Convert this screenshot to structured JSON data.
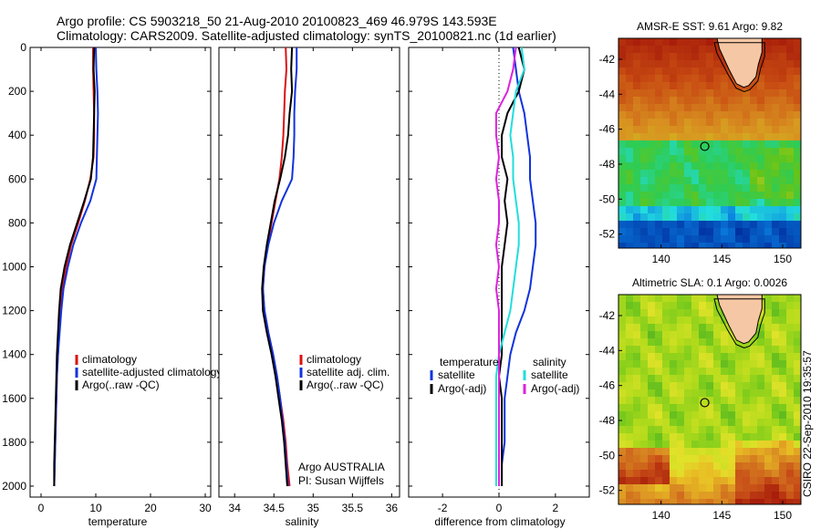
{
  "title_line1": "Argo profile: CS 5903218_50 21-Aug-2010 20100823_469 46.979S 143.593E",
  "title_line2": "Climatology: CARS2009. Satellite-adjusted climatology: synTS_20100821.nc (1d earlier)",
  "stamp": "CSIRO 22-Sep-2010 19:35:57",
  "colors": {
    "climatology": "#dd1111",
    "satellite": "#1133dd",
    "argo": "#000000",
    "argo_sal": "#dd22dd",
    "sat_sal": "#22dddd"
  },
  "chart_data": [
    {
      "type": "line",
      "xlabel": "temperature",
      "xlim": [
        -2,
        31
      ],
      "xticks": [
        0,
        10,
        20,
        30
      ],
      "ylim": [
        2050,
        0
      ],
      "yticks": [
        0,
        200,
        400,
        600,
        800,
        1000,
        1200,
        1400,
        1600,
        1800,
        2000
      ],
      "legend": {
        "placement": "bottom-right",
        "entries": [
          "climatology",
          "satellite-adjusted climatology",
          "Argo(..raw -QC)"
        ]
      },
      "series": [
        {
          "name": "climatology",
          "color": "#dd1111",
          "points": [
            [
              9.5,
              0
            ],
            [
              9.5,
              100
            ],
            [
              9.6,
              200
            ],
            [
              9.7,
              300
            ],
            [
              9.7,
              400
            ],
            [
              9.6,
              500
            ],
            [
              9.0,
              600
            ],
            [
              8.0,
              700
            ],
            [
              6.8,
              800
            ],
            [
              5.5,
              900
            ],
            [
              4.6,
              1000
            ],
            [
              3.9,
              1100
            ],
            [
              3.6,
              1200
            ],
            [
              3.3,
              1300
            ],
            [
              3.1,
              1400
            ],
            [
              2.9,
              1500
            ],
            [
              2.8,
              1600
            ],
            [
              2.7,
              1700
            ],
            [
              2.6,
              1800
            ],
            [
              2.5,
              1900
            ],
            [
              2.4,
              2000
            ]
          ]
        },
        {
          "name": "satellite-adjusted climatology",
          "color": "#1133dd",
          "points": [
            [
              10.0,
              0
            ],
            [
              10.1,
              100
            ],
            [
              10.3,
              200
            ],
            [
              10.4,
              300
            ],
            [
              10.3,
              400
            ],
            [
              10.2,
              500
            ],
            [
              10.1,
              600
            ],
            [
              9.0,
              700
            ],
            [
              7.3,
              800
            ],
            [
              5.9,
              900
            ],
            [
              4.9,
              1000
            ],
            [
              4.1,
              1100
            ],
            [
              3.7,
              1200
            ],
            [
              3.4,
              1300
            ],
            [
              3.1,
              1400
            ],
            [
              2.9,
              1500
            ],
            [
              2.8,
              1600
            ],
            [
              2.7,
              1700
            ],
            [
              2.6,
              1800
            ],
            [
              2.5,
              1900
            ],
            [
              2.4,
              2000
            ]
          ]
        },
        {
          "name": "Argo(..raw -QC)",
          "color": "#000000",
          "points": [
            [
              9.7,
              0
            ],
            [
              9.6,
              100
            ],
            [
              9.8,
              200
            ],
            [
              9.7,
              300
            ],
            [
              9.6,
              400
            ],
            [
              9.5,
              500
            ],
            [
              9.1,
              600
            ],
            [
              7.9,
              700
            ],
            [
              6.6,
              800
            ],
            [
              5.3,
              900
            ],
            [
              4.3,
              1000
            ],
            [
              3.6,
              1100
            ],
            [
              3.3,
              1200
            ],
            [
              3.1,
              1300
            ],
            [
              2.9,
              1400
            ],
            [
              2.8,
              1500
            ],
            [
              2.7,
              1600
            ],
            [
              2.6,
              1700
            ],
            [
              2.5,
              1800
            ],
            [
              2.4,
              1900
            ],
            [
              2.4,
              2000
            ]
          ]
        }
      ]
    },
    {
      "type": "line",
      "xlabel": "salinity",
      "xlim": [
        33.8,
        36.1
      ],
      "xticks": [
        34,
        34.5,
        35,
        35.5,
        36
      ],
      "ylim": [
        2050,
        0
      ],
      "yticks": [
        0,
        200,
        400,
        600,
        800,
        1000,
        1200,
        1400,
        1600,
        1800,
        2000
      ],
      "legend": {
        "placement": "bottom-right",
        "entries": [
          "climatology",
          "satellite adj. clim.",
          "Argo(..raw -QC)"
        ]
      },
      "annotations": [
        "Argo AUSTRALIA",
        "PI: Susan Wijffels"
      ],
      "series": [
        {
          "name": "climatology",
          "color": "#dd1111",
          "points": [
            [
              34.65,
              0
            ],
            [
              34.66,
              100
            ],
            [
              34.64,
              200
            ],
            [
              34.63,
              300
            ],
            [
              34.62,
              400
            ],
            [
              34.6,
              500
            ],
            [
              34.57,
              600
            ],
            [
              34.52,
              700
            ],
            [
              34.47,
              800
            ],
            [
              34.42,
              900
            ],
            [
              34.38,
              1000
            ],
            [
              34.36,
              1100
            ],
            [
              34.38,
              1200
            ],
            [
              34.43,
              1300
            ],
            [
              34.49,
              1400
            ],
            [
              34.54,
              1500
            ],
            [
              34.58,
              1600
            ],
            [
              34.62,
              1700
            ],
            [
              34.65,
              1800
            ],
            [
              34.67,
              1900
            ],
            [
              34.7,
              2000
            ]
          ]
        },
        {
          "name": "satellite adj. clim.",
          "color": "#1133dd",
          "points": [
            [
              34.79,
              0
            ],
            [
              34.79,
              100
            ],
            [
              34.77,
              200
            ],
            [
              34.76,
              300
            ],
            [
              34.76,
              400
            ],
            [
              34.75,
              500
            ],
            [
              34.73,
              600
            ],
            [
              34.6,
              700
            ],
            [
              34.5,
              800
            ],
            [
              34.43,
              900
            ],
            [
              34.38,
              1000
            ],
            [
              34.36,
              1100
            ],
            [
              34.38,
              1200
            ],
            [
              34.43,
              1300
            ],
            [
              34.49,
              1400
            ],
            [
              34.54,
              1500
            ],
            [
              34.58,
              1600
            ],
            [
              34.61,
              1700
            ],
            [
              34.64,
              1800
            ],
            [
              34.66,
              1900
            ],
            [
              34.68,
              2000
            ]
          ]
        },
        {
          "name": "Argo(..raw -QC)",
          "color": "#000000",
          "points": [
            [
              34.73,
              0
            ],
            [
              34.72,
              100
            ],
            [
              34.73,
              200
            ],
            [
              34.7,
              300
            ],
            [
              34.68,
              400
            ],
            [
              34.64,
              500
            ],
            [
              34.58,
              600
            ],
            [
              34.51,
              700
            ],
            [
              34.46,
              800
            ],
            [
              34.41,
              900
            ],
            [
              34.37,
              1000
            ],
            [
              34.35,
              1100
            ],
            [
              34.36,
              1200
            ],
            [
              34.41,
              1300
            ],
            [
              34.47,
              1400
            ],
            [
              34.52,
              1500
            ],
            [
              34.56,
              1600
            ],
            [
              34.6,
              1700
            ],
            [
              34.63,
              1800
            ],
            [
              34.65,
              1900
            ],
            [
              34.67,
              2000
            ]
          ]
        }
      ]
    },
    {
      "type": "line",
      "xlabel": "difference from climatology",
      "xlim": [
        -3.2,
        3.2
      ],
      "xticks": [
        -2,
        0,
        2
      ],
      "ylim": [
        2050,
        0
      ],
      "yticks": [
        0,
        200,
        400,
        600,
        800,
        1000,
        1200,
        1400,
        1600,
        1800,
        2000
      ],
      "legend": {
        "placement": "bottom",
        "groups": [
          {
            "title": "temperature",
            "entries": [
              "satellite",
              "Argo(-adj)"
            ]
          },
          {
            "title": "salinity",
            "entries": [
              "satellite",
              "Argo(-adj)"
            ]
          }
        ]
      },
      "series": [
        {
          "name": "satellite",
          "group": "temperature",
          "color": "#1133dd",
          "points": [
            [
              0.5,
              0
            ],
            [
              0.6,
              100
            ],
            [
              0.7,
              200
            ],
            [
              0.9,
              300
            ],
            [
              1.0,
              400
            ],
            [
              1.1,
              500
            ],
            [
              1.1,
              600
            ],
            [
              1.2,
              700
            ],
            [
              1.3,
              800
            ],
            [
              1.3,
              900
            ],
            [
              1.2,
              1000
            ],
            [
              1.1,
              1100
            ],
            [
              0.9,
              1200
            ],
            [
              0.6,
              1300
            ],
            [
              0.4,
              1400
            ],
            [
              0.3,
              1500
            ],
            [
              0.2,
              1600
            ],
            [
              0.2,
              1700
            ],
            [
              0.2,
              1800
            ],
            [
              0.1,
              1900
            ],
            [
              0.1,
              2000
            ]
          ]
        },
        {
          "name": "Argo(-adj)",
          "group": "temperature",
          "color": "#000000",
          "points": [
            [
              0.7,
              0
            ],
            [
              0.9,
              100
            ],
            [
              0.7,
              200
            ],
            [
              0.3,
              300
            ],
            [
              0.1,
              400
            ],
            [
              0.1,
              500
            ],
            [
              0.3,
              600
            ],
            [
              0.2,
              700
            ],
            [
              0.3,
              800
            ],
            [
              0.2,
              900
            ],
            [
              0.1,
              1000
            ],
            [
              0.1,
              1100
            ],
            [
              0.1,
              1200
            ],
            [
              0.1,
              1300
            ],
            [
              0.1,
              1400
            ],
            [
              0.0,
              1500
            ],
            [
              0.1,
              1600
            ],
            [
              0.1,
              1700
            ],
            [
              0.1,
              1800
            ],
            [
              0.1,
              1900
            ],
            [
              0.1,
              2000
            ]
          ]
        },
        {
          "name": "satellite",
          "group": "salinity",
          "color": "#22dddd",
          "points": [
            [
              0.8,
              0
            ],
            [
              0.9,
              100
            ],
            [
              0.6,
              200
            ],
            [
              0.5,
              300
            ],
            [
              0.4,
              400
            ],
            [
              0.5,
              500
            ],
            [
              0.5,
              600
            ],
            [
              0.6,
              700
            ],
            [
              0.7,
              800
            ],
            [
              0.7,
              900
            ],
            [
              0.6,
              1000
            ],
            [
              0.5,
              1100
            ],
            [
              0.4,
              1200
            ],
            [
              0.2,
              1300
            ],
            [
              0.0,
              1400
            ],
            [
              -0.1,
              1500
            ],
            [
              -0.1,
              1600
            ],
            [
              -0.1,
              1700
            ],
            [
              -0.1,
              1800
            ],
            [
              -0.1,
              1900
            ],
            [
              -0.1,
              2000
            ]
          ]
        },
        {
          "name": "Argo(-adj)",
          "group": "salinity",
          "color": "#dd22dd",
          "points": [
            [
              0.6,
              0
            ],
            [
              0.5,
              100
            ],
            [
              0.3,
              200
            ],
            [
              -0.1,
              300
            ],
            [
              -0.1,
              400
            ],
            [
              0.0,
              500
            ],
            [
              -0.1,
              600
            ],
            [
              0.0,
              700
            ],
            [
              0.0,
              800
            ],
            [
              -0.1,
              900
            ],
            [
              0.0,
              1000
            ],
            [
              -0.1,
              1100
            ],
            [
              0.0,
              1200
            ],
            [
              0.0,
              1300
            ],
            [
              0.0,
              1400
            ],
            [
              0.0,
              1500
            ],
            [
              0.0,
              1600
            ],
            [
              0.0,
              1700
            ],
            [
              0.0,
              1800
            ],
            [
              0.0,
              1900
            ],
            [
              0.0,
              2000
            ]
          ]
        }
      ]
    },
    {
      "type": "heatmap",
      "title": "AMSR-E SST: 9.61  Argo: 9.82",
      "xlim": [
        136.5,
        151.5
      ],
      "ylim": [
        -52.8,
        -40.8
      ],
      "xticks": [
        140,
        145,
        150
      ],
      "yticks": [
        -42,
        -44,
        -46,
        -48,
        -50,
        -52
      ],
      "marker": [
        143.593,
        -46.979
      ],
      "colormap": [
        "#002a9c",
        "#0a7fe0",
        "#22dddd",
        "#2ecc55",
        "#66c418",
        "#cccc20",
        "#d89020",
        "#c74a12",
        "#a81e0a"
      ],
      "land_color": "#f6c7a4"
    },
    {
      "type": "heatmap",
      "title": "Altimetric SLA: 0.1  Argo: 0.0026",
      "xlim": [
        136.5,
        151.5
      ],
      "ylim": [
        -52.8,
        -40.8
      ],
      "xticks": [
        140,
        145,
        150
      ],
      "yticks": [
        -42,
        -44,
        -46,
        -48,
        -50,
        -52
      ],
      "marker": [
        143.593,
        -46.979
      ],
      "colormap": [
        "#44aa22",
        "#7acb1c",
        "#b8dc1c",
        "#e2e22a",
        "#e8bc24",
        "#d88822",
        "#c84f18",
        "#a81e0a"
      ],
      "land_color": "#f6c7a4"
    }
  ]
}
